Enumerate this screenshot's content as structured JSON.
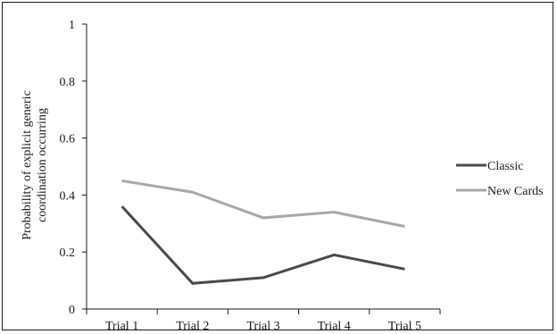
{
  "chart_data": {
    "type": "line",
    "title": "",
    "xlabel": "",
    "ylabel_lines": [
      "Probability of explicit generic",
      "coordination occurring"
    ],
    "categories": [
      "Trial 1",
      "Trial 2",
      "Trial 3",
      "Trial 4",
      "Trial 5"
    ],
    "ylim": [
      0,
      1
    ],
    "yticks": [
      "0",
      "0.2",
      "0.4",
      "0.6",
      "0.8",
      "1"
    ],
    "grid": false,
    "legend_position": "right",
    "series": [
      {
        "name": "Classic",
        "color": "#4a4a4a",
        "values": [
          0.36,
          0.09,
          0.11,
          0.19,
          0.14
        ]
      },
      {
        "name": "New Cards",
        "color": "#a8a8a8",
        "values": [
          0.45,
          0.41,
          0.32,
          0.34,
          0.29
        ]
      }
    ]
  }
}
